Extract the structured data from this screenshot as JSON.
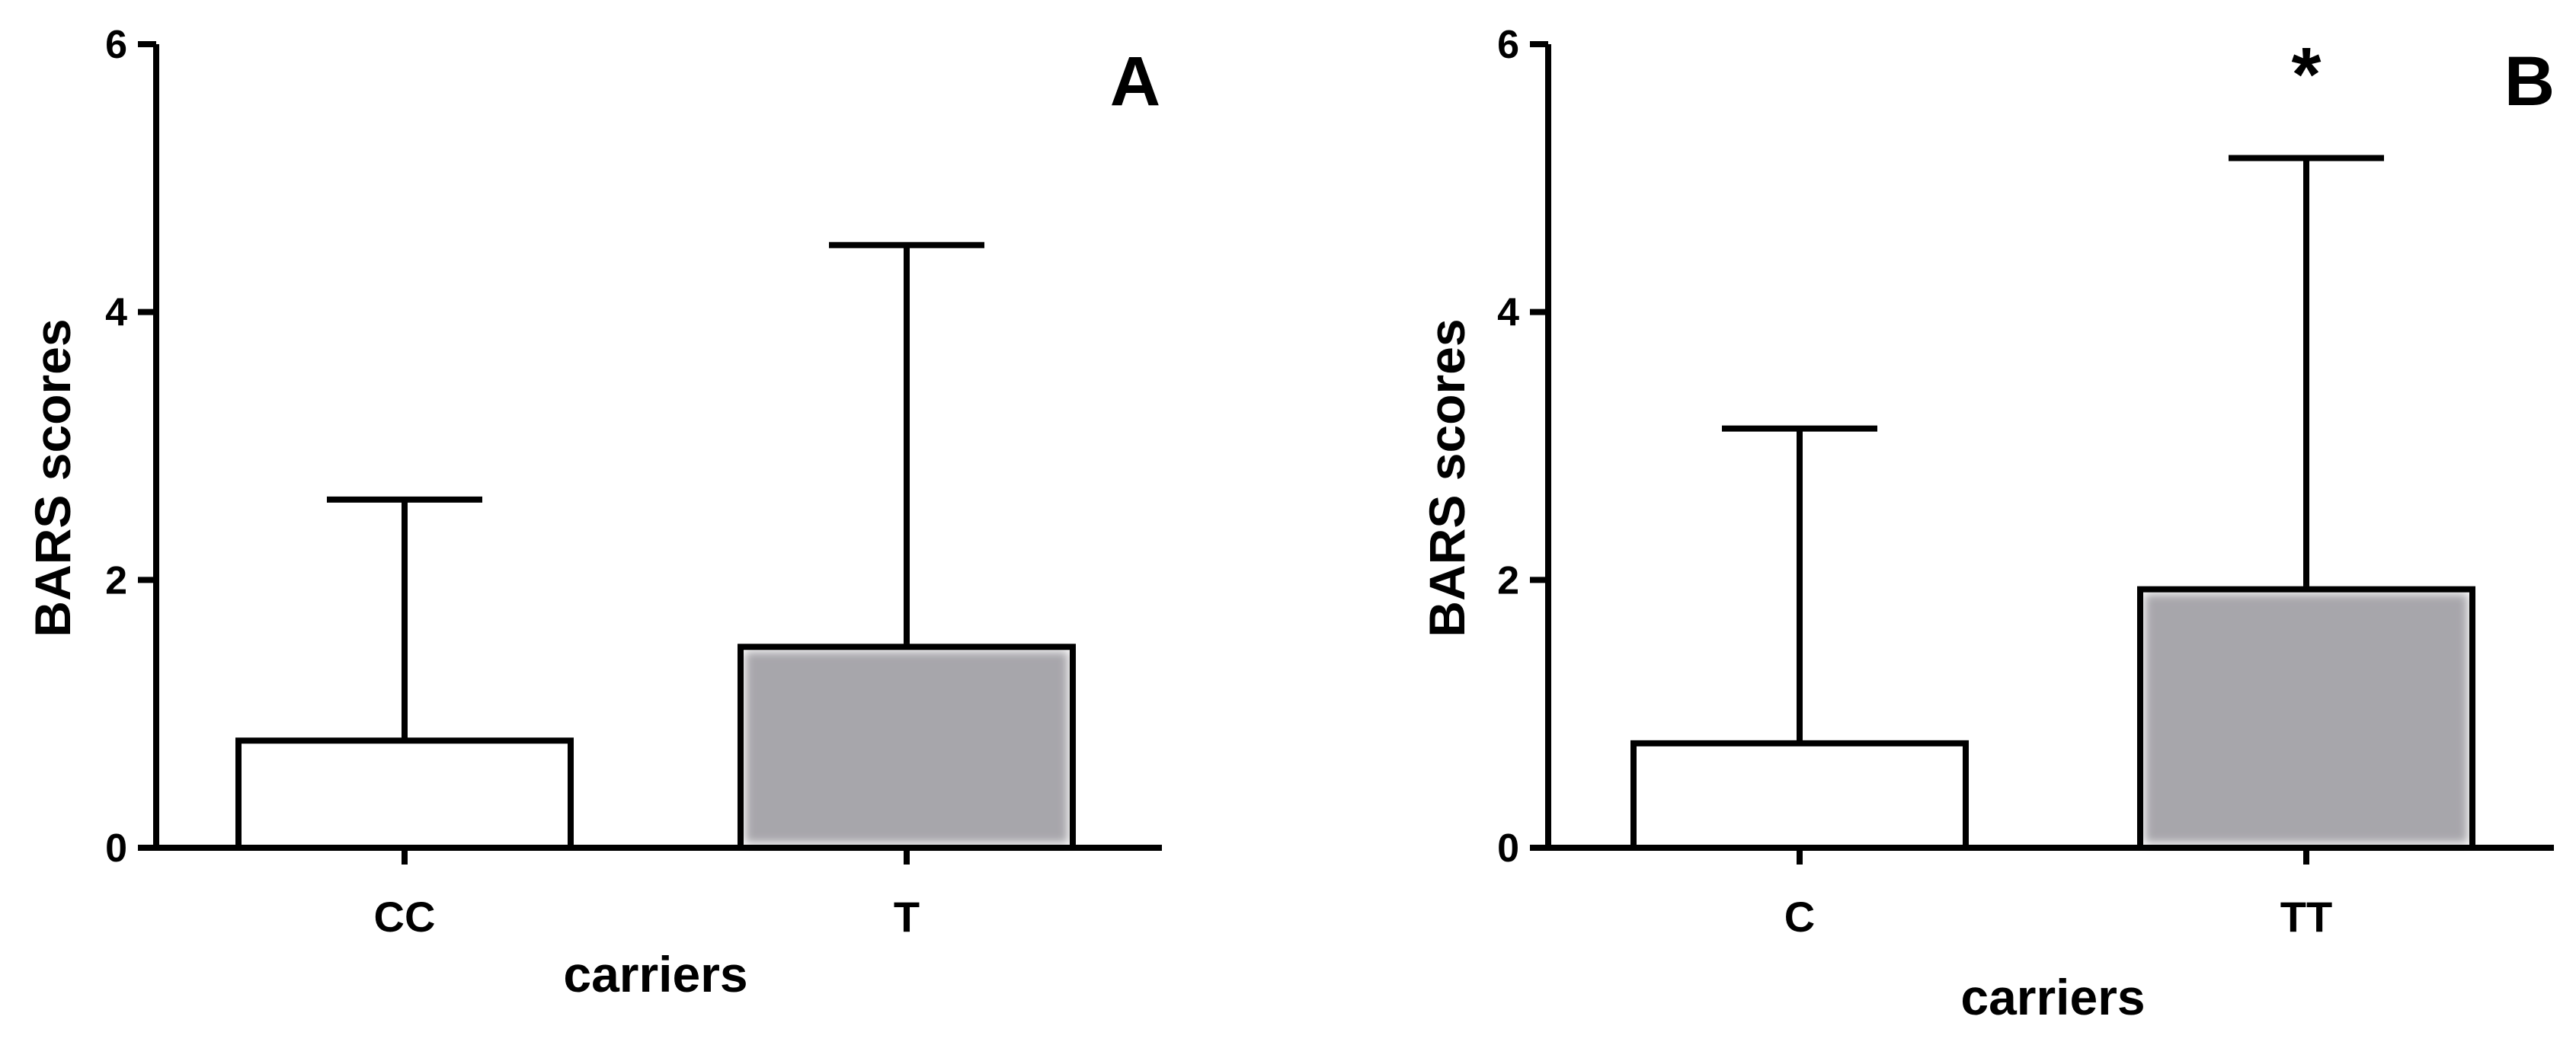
{
  "chart_data": [
    {
      "type": "bar",
      "panel_label": "A",
      "categories": [
        "CC",
        "T"
      ],
      "values": [
        0.8,
        1.5
      ],
      "error_upper": [
        2.6,
        4.5
      ],
      "bar_colors": [
        "#ffffff",
        "#a7a6ab"
      ],
      "xlabel": "carriers",
      "ylabel": "BARS scores",
      "ylim": [
        0,
        6
      ],
      "yticks": [
        "0",
        "2",
        "4",
        "6"
      ],
      "annotations": [],
      "grid": false
    },
    {
      "type": "bar",
      "panel_label": "B",
      "categories": [
        "C",
        "TT"
      ],
      "values": [
        0.78,
        1.93
      ],
      "error_upper": [
        3.13,
        5.15
      ],
      "bar_colors": [
        "#ffffff",
        "#a7a6ab"
      ],
      "xlabel": "carriers",
      "ylabel": "BARS scores",
      "ylim": [
        0,
        6
      ],
      "yticks": [
        "0",
        "2",
        "4",
        "6"
      ],
      "annotations": [
        {
          "text": "*",
          "category": "TT"
        }
      ],
      "grid": false
    }
  ]
}
